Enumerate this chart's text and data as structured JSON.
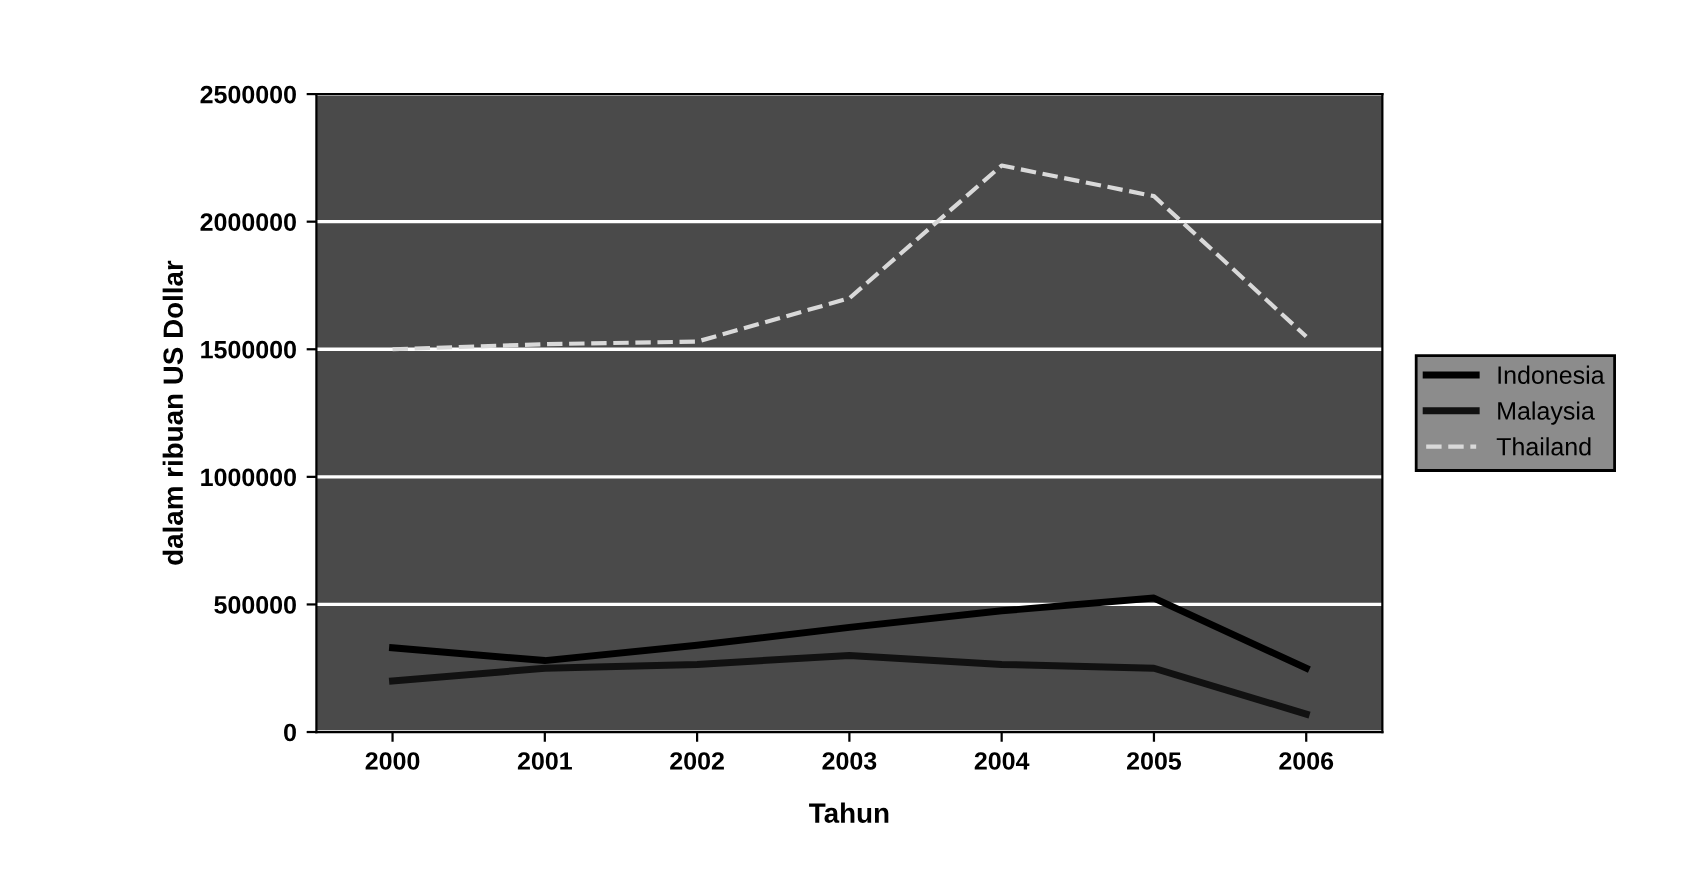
{
  "chart_data": {
    "type": "line",
    "xlabel": "Tahun",
    "ylabel": "dalam ribuan US Dollar",
    "categories": [
      "2000",
      "2001",
      "2002",
      "2003",
      "2004",
      "2005",
      "2006"
    ],
    "series": [
      {
        "name": "Indonesia",
        "color": "#000000",
        "values": [
          330000,
          280000,
          340000,
          410000,
          475000,
          525000,
          250000
        ]
      },
      {
        "name": "Malaysia",
        "color": "#111111",
        "values": [
          200000,
          250000,
          265000,
          300000,
          265000,
          250000,
          70000
        ]
      },
      {
        "name": "Thailand",
        "color": "#d9d9d9",
        "line_style": "dashed",
        "values": [
          1500000,
          1520000,
          1530000,
          1700000,
          2220000,
          2100000,
          1550000
        ]
      }
    ],
    "ylim": [
      0,
      2500000
    ],
    "yticks": [
      0,
      500000,
      1000000,
      1500000,
      2000000,
      2500000
    ],
    "grid": "y",
    "legend": "right",
    "marker": "none",
    "line_style": "solid"
  }
}
